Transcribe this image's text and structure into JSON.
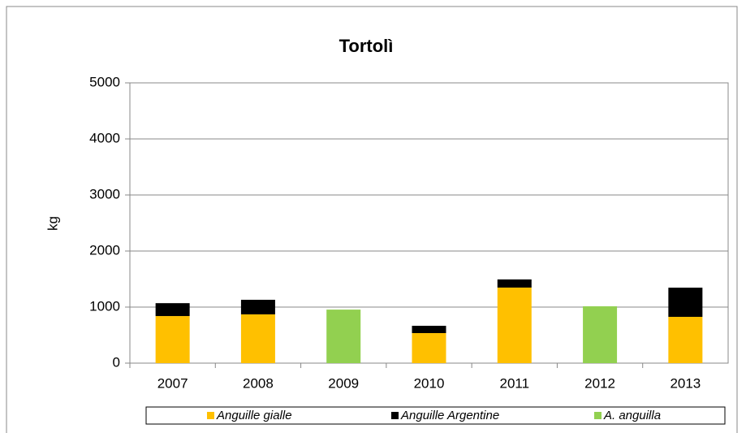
{
  "chart_data": {
    "type": "bar",
    "stacked": true,
    "title": "Tortolì",
    "y_label": "kg",
    "categories": [
      "2007",
      "2008",
      "2009",
      "2010",
      "2011",
      "2012",
      "2013"
    ],
    "series": [
      {
        "name": "Anguille gialle",
        "color": "#ffc000",
        "values": [
          840,
          870,
          null,
          536,
          1348,
          null,
          826
        ]
      },
      {
        "name": "Anguille Argentine",
        "color": "#000000",
        "values": [
          230,
          260,
          null,
          130,
          145,
          null,
          520
        ]
      },
      {
        "name": "A. anguilla",
        "color": "#92d050",
        "values": [
          null,
          null,
          955,
          null,
          null,
          1014,
          null
        ]
      }
    ],
    "ylim": [
      0,
      5000
    ],
    "yticks": [
      0,
      1000,
      2000,
      3000,
      4000,
      5000
    ],
    "grid": true,
    "legend": "bottom"
  }
}
